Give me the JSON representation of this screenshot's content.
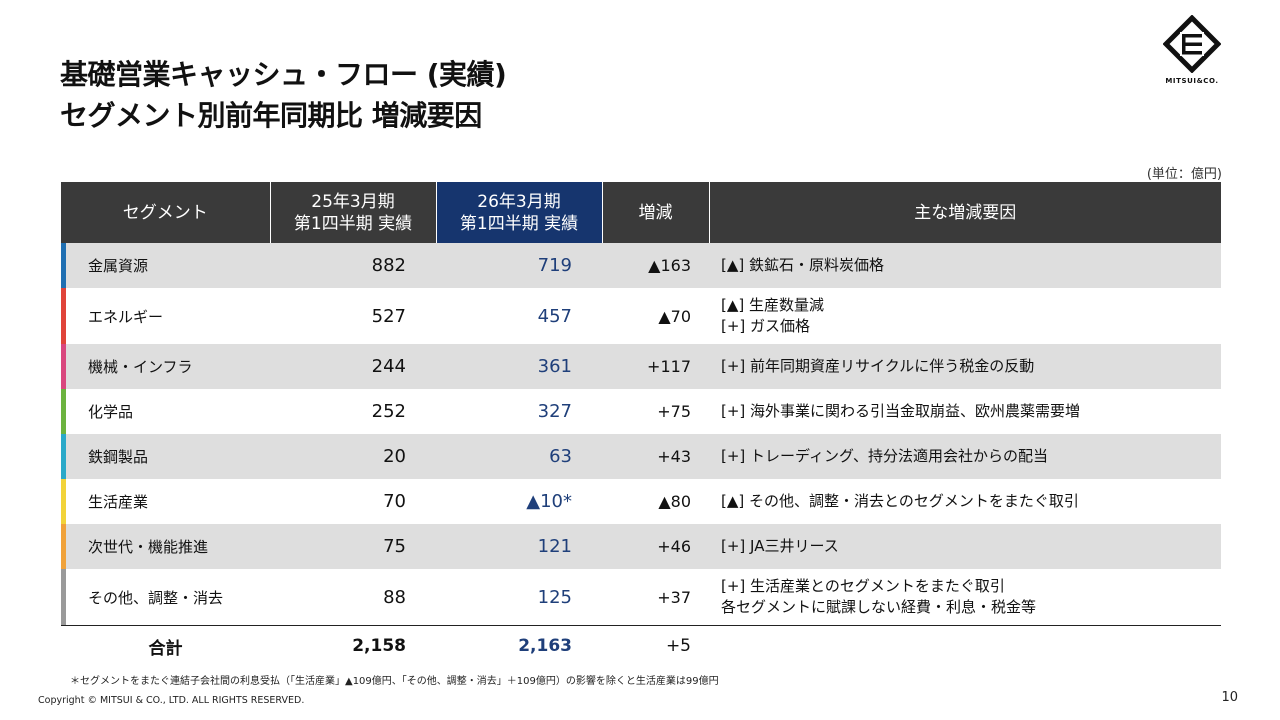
{
  "title": {
    "line1": "基礎営業キャッシュ・フロー (実績)",
    "line2": "セグメント別前年同期比 増減要因"
  },
  "logo": {
    "text": "MITSUI&CO."
  },
  "unit": "(単位：億円)",
  "table": {
    "headers": {
      "segment": "セグメント",
      "prev_l1": "25年3月期",
      "prev_l2": "第1四半期 実績",
      "curr_l1": "26年3月期",
      "curr_l2": "第1四半期 実績",
      "diff": "増減",
      "reason": "主な増減要因"
    },
    "rows": [
      {
        "segment": "金属資源",
        "prev": "882",
        "curr": "719",
        "diff": "▲163",
        "reason1": "[▲] 鉄鉱石・原料炭価格",
        "reason2": "",
        "color": "#1f6fb2"
      },
      {
        "segment": "エネルギー",
        "prev": "527",
        "curr": "457",
        "diff": "▲70",
        "reason1": "[▲] 生産数量減",
        "reason2": "[+] ガス価格",
        "color": "#e0443a"
      },
      {
        "segment": "機械・インフラ",
        "prev": "244",
        "curr": "361",
        "diff": "+117",
        "reason1": "[+] 前年同期資産リサイクルに伴う税金の反動",
        "reason2": "",
        "color": "#d9477e"
      },
      {
        "segment": "化学品",
        "prev": "252",
        "curr": "327",
        "diff": "+75",
        "reason1": "[+] 海外事業に関わる引当金取崩益、欧州農薬需要増",
        "reason2": "",
        "color": "#6cb33f"
      },
      {
        "segment": "鉄鋼製品",
        "prev": "20",
        "curr": "63",
        "diff": "+43",
        "reason1": "[+] トレーディング、持分法適用会社からの配当",
        "reason2": "",
        "color": "#2aa9c9"
      },
      {
        "segment": "生活産業",
        "prev": "70",
        "curr": "▲10*",
        "diff": "▲80",
        "reason1": "[▲] その他、調整・消去とのセグメントをまたぐ取引",
        "reason2": "",
        "color": "#f2d33a"
      },
      {
        "segment": "次世代・機能推進",
        "prev": "75",
        "curr": "121",
        "diff": "+46",
        "reason1": "[+] JA三井リース",
        "reason2": "",
        "color": "#f0a23a"
      },
      {
        "segment": "その他、調整・消去",
        "prev": "88",
        "curr": "125",
        "diff": "+37",
        "reason1": "[+] 生活産業とのセグメントをまたぐ取引",
        "reason2": "各セグメントに賦課しない経費・利息・税金等",
        "color": "#9a9a9a"
      }
    ],
    "total": {
      "label": "合計",
      "prev": "2,158",
      "curr": "2,163",
      "diff": "+5"
    }
  },
  "footnote": "＊セグメントをまたぐ連結子会社間の利息受払（「生活産業」▲109億円、「その他、調整・消去」＋109億円）の影響を除くと生活産業は99億円",
  "copyright": "Copyright © MITSUI & CO., LTD. ALL RIGHTS RESERVED.",
  "page_number": "10"
}
